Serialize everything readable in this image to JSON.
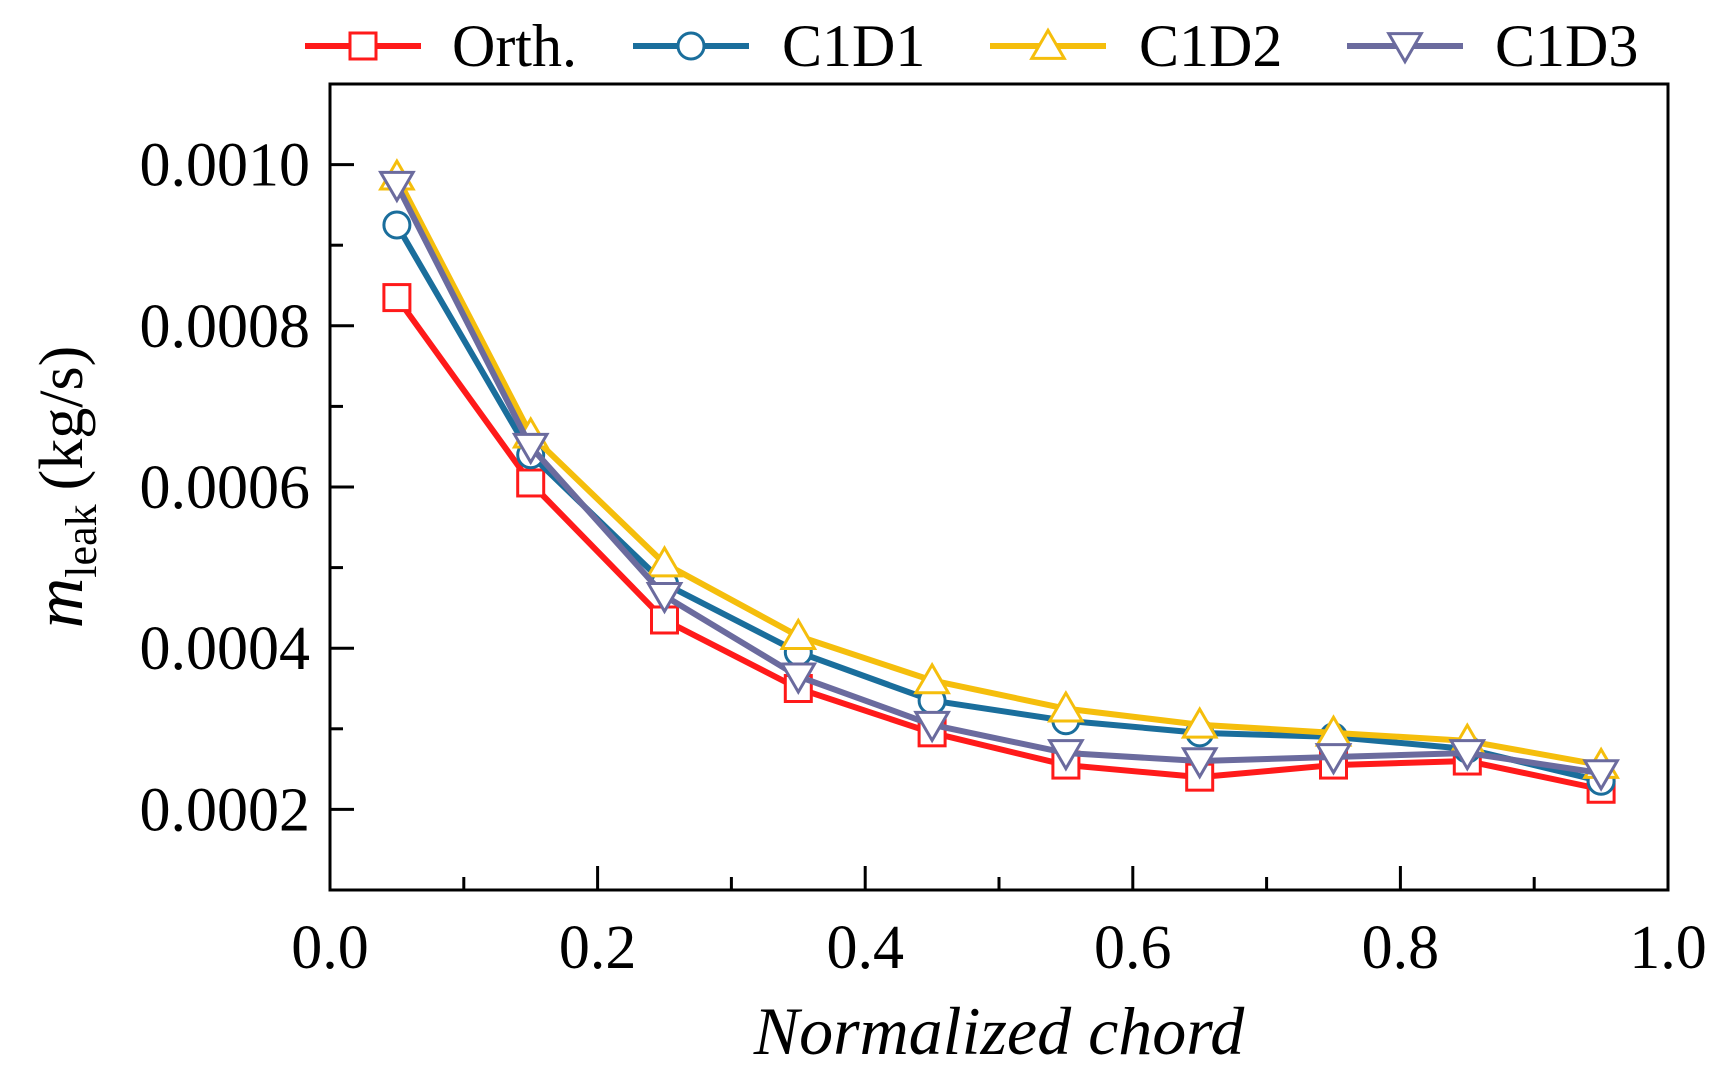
{
  "chart_data": {
    "type": "line",
    "title": "",
    "xlabel": "Normalized chord",
    "ylabel": {
      "symbol": "m",
      "subscript": "leak",
      "unit": "(kg/s)"
    },
    "xlim": [
      0.0,
      1.0
    ],
    "ylim": [
      0.0001,
      0.0011
    ],
    "xticks": [
      0.0,
      0.2,
      0.4,
      0.6,
      0.8,
      1.0
    ],
    "xtick_labels": [
      "0.0",
      "0.2",
      "0.4",
      "0.6",
      "0.8",
      "1.0"
    ],
    "yticks": [
      0.0002,
      0.0004,
      0.0006,
      0.0008,
      0.001
    ],
    "ytick_labels": [
      "0.0002",
      "0.0004",
      "0.0006",
      "0.0008",
      "0.0010"
    ],
    "grid": false,
    "legend_position": "top",
    "x": [
      0.05,
      0.15,
      0.25,
      0.35,
      0.45,
      0.55,
      0.65,
      0.75,
      0.85,
      0.95
    ],
    "series": [
      {
        "name": "Orth.",
        "color": "#ff1a1a",
        "marker": "square",
        "values": [
          0.000835,
          0.000605,
          0.000435,
          0.00035,
          0.000295,
          0.000255,
          0.00024,
          0.000255,
          0.00026,
          0.000225
        ]
      },
      {
        "name": "C1D1",
        "color": "#1a6e9c",
        "marker": "circle",
        "values": [
          0.000925,
          0.00064,
          0.00048,
          0.000395,
          0.000335,
          0.00031,
          0.000295,
          0.00029,
          0.000275,
          0.000235
        ]
      },
      {
        "name": "C1D2",
        "color": "#f5be0c",
        "marker": "triangle-up",
        "values": [
          0.000985,
          0.000665,
          0.000505,
          0.000415,
          0.00036,
          0.000325,
          0.000305,
          0.000295,
          0.000285,
          0.000255
        ]
      },
      {
        "name": "C1D3",
        "color": "#6b6b9e",
        "marker": "triangle-down",
        "values": [
          0.000975,
          0.00065,
          0.000465,
          0.000365,
          0.000305,
          0.00027,
          0.00026,
          0.000265,
          0.00027,
          0.000245
        ]
      }
    ]
  }
}
